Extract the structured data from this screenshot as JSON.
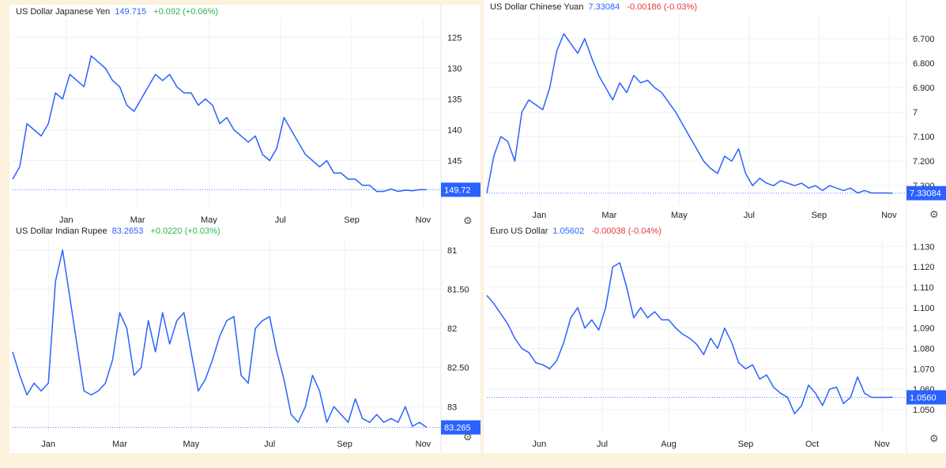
{
  "colors": {
    "line": "#2962ff",
    "grid": "#eef0f3",
    "axis_text": "#222222",
    "badge_bg": "#2962ff",
    "up": "#2fb54a",
    "down": "#e23b3b",
    "background": "#fdf2de"
  },
  "icons": {
    "settings": "gear-icon"
  },
  "panels": [
    {
      "id": "jpy",
      "title": "US Dollar Japanese Yen",
      "price": "149.715",
      "change": "+0.092",
      "change_pct": "(+0.06%)",
      "direction": "up",
      "last_badge": "149.72"
    },
    {
      "id": "cny",
      "title": "US Dollar Chinese Yuan",
      "price": "7.33084",
      "change": "-0.00186",
      "change_pct": "(-0.03%)",
      "direction": "down",
      "last_badge": "7.33084"
    },
    {
      "id": "inr",
      "title": "US Dollar Indian Rupee",
      "price": "83.2653",
      "change": "+0.0220",
      "change_pct": "(+0.03%)",
      "direction": "up",
      "last_badge": "83.265"
    },
    {
      "id": "eur",
      "title": "Euro US Dollar",
      "price": "1.05602",
      "change": "-0.00038",
      "change_pct": "(-0.04%)",
      "direction": "down",
      "last_badge": "1.0560"
    }
  ],
  "chart_data": [
    {
      "type": "line",
      "series_title": "US Dollar Japanese Yen",
      "inverted_y": true,
      "ylim": [
        122,
        153
      ],
      "yticks": [
        125,
        130,
        135,
        140,
        145
      ],
      "ytick_labels": [
        "125",
        "130",
        "135",
        "140",
        "145"
      ],
      "xlim": [
        0,
        12
      ],
      "xticks": [
        1.5,
        3.5,
        5.5,
        7.5,
        9.5,
        11.5
      ],
      "xtick_labels": [
        "Jan",
        "Mar",
        "May",
        "Jul",
        "Sep",
        "Nov"
      ],
      "last_value": 149.72,
      "x": [
        0,
        0.2,
        0.4,
        0.6,
        0.8,
        1.0,
        1.2,
        1.4,
        1.6,
        1.8,
        2.0,
        2.2,
        2.4,
        2.6,
        2.8,
        3.0,
        3.2,
        3.4,
        3.6,
        3.8,
        4.0,
        4.2,
        4.4,
        4.6,
        4.8,
        5.0,
        5.2,
        5.4,
        5.6,
        5.8,
        6.0,
        6.2,
        6.4,
        6.6,
        6.8,
        7.0,
        7.2,
        7.4,
        7.6,
        7.8,
        8.0,
        8.2,
        8.4,
        8.6,
        8.8,
        9.0,
        9.2,
        9.4,
        9.6,
        9.8,
        10.0,
        10.2,
        10.4,
        10.6,
        10.8,
        11.0,
        11.2,
        11.4,
        11.6
      ],
      "y": [
        148,
        146,
        139,
        140,
        141,
        139,
        134,
        135,
        131,
        132,
        133,
        128,
        129,
        130,
        132,
        133,
        136,
        137,
        135,
        133,
        131,
        132,
        131,
        133,
        134,
        134,
        136,
        135,
        136,
        139,
        138,
        140,
        141,
        142,
        141,
        144,
        145,
        143,
        138,
        140,
        142,
        144,
        145,
        146,
        145,
        147,
        147,
        148,
        148,
        149,
        149,
        150,
        150,
        149.6,
        150,
        149.8,
        149.9,
        149.7,
        149.72
      ]
    },
    {
      "type": "line",
      "series_title": "US Dollar Chinese Yuan",
      "inverted_y": true,
      "ylim": [
        6.6,
        7.38
      ],
      "yticks": [
        6.7,
        6.8,
        6.9,
        7.0,
        7.1,
        7.2,
        7.3
      ],
      "ytick_labels": [
        "6.700",
        "6.800",
        "6.900",
        "7",
        "7.100",
        "7.200",
        "7.300"
      ],
      "xlim": [
        0,
        12
      ],
      "xticks": [
        1.5,
        3.5,
        5.5,
        7.5,
        9.5,
        11.5
      ],
      "xtick_labels": [
        "Jan",
        "Mar",
        "May",
        "Jul",
        "Sep",
        "Nov"
      ],
      "last_value": 7.33084,
      "x": [
        0,
        0.2,
        0.4,
        0.6,
        0.8,
        1.0,
        1.2,
        1.4,
        1.6,
        1.8,
        2.0,
        2.2,
        2.4,
        2.6,
        2.8,
        3.0,
        3.2,
        3.4,
        3.6,
        3.8,
        4.0,
        4.2,
        4.4,
        4.6,
        4.8,
        5.0,
        5.2,
        5.4,
        5.6,
        5.8,
        6.0,
        6.2,
        6.4,
        6.6,
        6.8,
        7.0,
        7.2,
        7.4,
        7.6,
        7.8,
        8.0,
        8.2,
        8.4,
        8.6,
        8.8,
        9.0,
        9.2,
        9.4,
        9.6,
        9.8,
        10.0,
        10.2,
        10.4,
        10.6,
        10.8,
        11.0,
        11.2,
        11.4,
        11.6
      ],
      "y": [
        7.33,
        7.18,
        7.1,
        7.12,
        7.2,
        7.0,
        6.95,
        6.97,
        6.99,
        6.9,
        6.75,
        6.68,
        6.72,
        6.76,
        6.7,
        6.78,
        6.85,
        6.9,
        6.95,
        6.88,
        6.92,
        6.85,
        6.88,
        6.87,
        6.9,
        6.92,
        6.96,
        7.0,
        7.05,
        7.1,
        7.15,
        7.2,
        7.23,
        7.25,
        7.18,
        7.2,
        7.15,
        7.25,
        7.3,
        7.27,
        7.29,
        7.3,
        7.28,
        7.29,
        7.3,
        7.29,
        7.31,
        7.3,
        7.32,
        7.3,
        7.31,
        7.32,
        7.31,
        7.33,
        7.32,
        7.33,
        7.33,
        7.33,
        7.33084
      ]
    },
    {
      "type": "line",
      "series_title": "US Dollar Indian Rupee",
      "inverted_y": true,
      "ylim": [
        80.85,
        83.35
      ],
      "yticks": [
        81,
        81.5,
        82,
        82.5,
        83
      ],
      "ytick_labels": [
        "81",
        "81.50",
        "82",
        "82.50",
        "83"
      ],
      "xlim": [
        0,
        12
      ],
      "xticks": [
        1.0,
        3.0,
        5.0,
        7.2,
        9.3,
        11.5
      ],
      "xtick_labels": [
        "Jan",
        "Mar",
        "May",
        "Jul",
        "Sep",
        "Nov"
      ],
      "last_value": 83.265,
      "x": [
        0,
        0.2,
        0.4,
        0.6,
        0.8,
        1.0,
        1.2,
        1.4,
        1.6,
        1.8,
        2.0,
        2.2,
        2.4,
        2.6,
        2.8,
        3.0,
        3.2,
        3.4,
        3.6,
        3.8,
        4.0,
        4.2,
        4.4,
        4.6,
        4.8,
        5.0,
        5.2,
        5.4,
        5.6,
        5.8,
        6.0,
        6.2,
        6.4,
        6.6,
        6.8,
        7.0,
        7.2,
        7.4,
        7.6,
        7.8,
        8.0,
        8.2,
        8.4,
        8.6,
        8.8,
        9.0,
        9.2,
        9.4,
        9.6,
        9.8,
        10.0,
        10.2,
        10.4,
        10.6,
        10.8,
        11.0,
        11.2,
        11.4,
        11.6
      ],
      "y": [
        82.3,
        82.6,
        82.85,
        82.7,
        82.8,
        82.7,
        81.4,
        81.0,
        81.6,
        82.2,
        82.8,
        82.85,
        82.8,
        82.7,
        82.4,
        81.8,
        82.0,
        82.6,
        82.5,
        81.9,
        82.3,
        81.8,
        82.2,
        81.9,
        81.8,
        82.3,
        82.8,
        82.65,
        82.4,
        82.1,
        81.9,
        81.85,
        82.6,
        82.7,
        82.0,
        81.9,
        81.85,
        82.3,
        82.65,
        83.1,
        83.2,
        83.0,
        82.6,
        82.8,
        83.2,
        83.0,
        83.1,
        83.2,
        82.9,
        83.15,
        83.2,
        83.1,
        83.2,
        83.15,
        83.2,
        83.0,
        83.25,
        83.2,
        83.265
      ]
    },
    {
      "type": "line",
      "series_title": "Euro US Dollar",
      "inverted_y": false,
      "ylim": [
        1.038,
        1.134
      ],
      "yticks": [
        1.05,
        1.06,
        1.07,
        1.08,
        1.09,
        1.1,
        1.11,
        1.12,
        1.13
      ],
      "ytick_labels": [
        "1.050",
        "1.060",
        "1.070",
        "1.080",
        "1.090",
        "1.100",
        "1.110",
        "1.120",
        "1.130"
      ],
      "xlim": [
        0,
        12
      ],
      "xticks": [
        1.5,
        3.3,
        5.2,
        7.4,
        9.3,
        11.3
      ],
      "xtick_labels": [
        "Jun",
        "Jul",
        "Aug",
        "Sep",
        "Oct",
        "Nov"
      ],
      "last_value": 1.05602,
      "x": [
        0,
        0.2,
        0.4,
        0.6,
        0.8,
        1.0,
        1.2,
        1.4,
        1.6,
        1.8,
        2.0,
        2.2,
        2.4,
        2.6,
        2.8,
        3.0,
        3.2,
        3.4,
        3.6,
        3.8,
        4.0,
        4.2,
        4.4,
        4.6,
        4.8,
        5.0,
        5.2,
        5.4,
        5.6,
        5.8,
        6.0,
        6.2,
        6.4,
        6.6,
        6.8,
        7.0,
        7.2,
        7.4,
        7.6,
        7.8,
        8.0,
        8.2,
        8.4,
        8.6,
        8.8,
        9.0,
        9.2,
        9.4,
        9.6,
        9.8,
        10.0,
        10.2,
        10.4,
        10.6,
        10.8,
        11.0,
        11.2,
        11.4,
        11.6
      ],
      "y": [
        1.106,
        1.102,
        1.097,
        1.092,
        1.085,
        1.08,
        1.078,
        1.073,
        1.072,
        1.07,
        1.074,
        1.083,
        1.095,
        1.1,
        1.09,
        1.094,
        1.089,
        1.1,
        1.12,
        1.122,
        1.11,
        1.095,
        1.1,
        1.095,
        1.098,
        1.094,
        1.094,
        1.09,
        1.087,
        1.085,
        1.082,
        1.077,
        1.085,
        1.08,
        1.09,
        1.083,
        1.073,
        1.07,
        1.072,
        1.065,
        1.067,
        1.061,
        1.058,
        1.056,
        1.048,
        1.052,
        1.062,
        1.058,
        1.052,
        1.06,
        1.061,
        1.053,
        1.056,
        1.066,
        1.058,
        1.056,
        1.056,
        1.056,
        1.05602
      ]
    }
  ]
}
